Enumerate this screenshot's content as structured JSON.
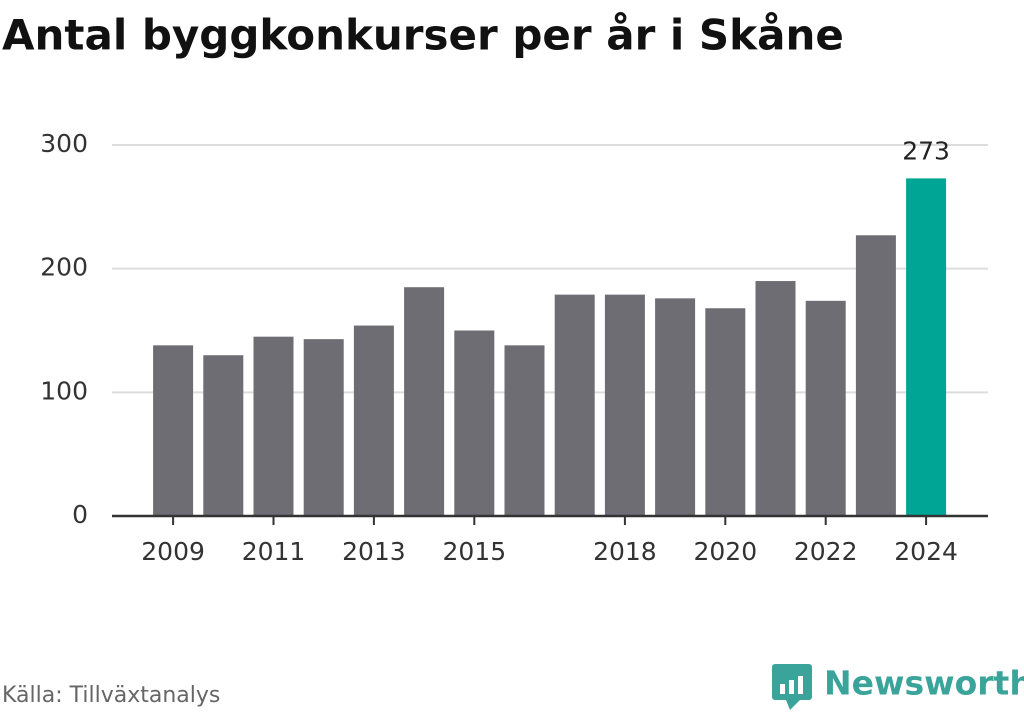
{
  "chart_data": {
    "type": "bar",
    "title": "Antal byggkonkurser per år i Skåne",
    "categories": [
      "2009",
      null,
      "2011",
      null,
      "2013",
      null,
      "2015",
      null,
      null,
      "2018",
      null,
      "2020",
      null,
      "2022",
      null,
      "2024"
    ],
    "values": [
      138,
      130,
      145,
      143,
      154,
      185,
      150,
      138,
      179,
      179,
      176,
      168,
      190,
      174,
      227,
      273
    ],
    "colors": [
      "#6e6d73",
      "#6e6d73",
      "#6e6d73",
      "#6e6d73",
      "#6e6d73",
      "#6e6d73",
      "#6e6d73",
      "#6e6d73",
      "#6e6d73",
      "#6e6d73",
      "#6e6d73",
      "#6e6d73",
      "#6e6d73",
      "#6e6d73",
      "#6e6d73",
      "#00a596"
    ],
    "ylim": [
      0,
      300
    ],
    "yticks": [
      0,
      100,
      200,
      300
    ],
    "grid": true,
    "source": "Källa: Tillväxtanalys",
    "brand": "Newsworthy"
  }
}
